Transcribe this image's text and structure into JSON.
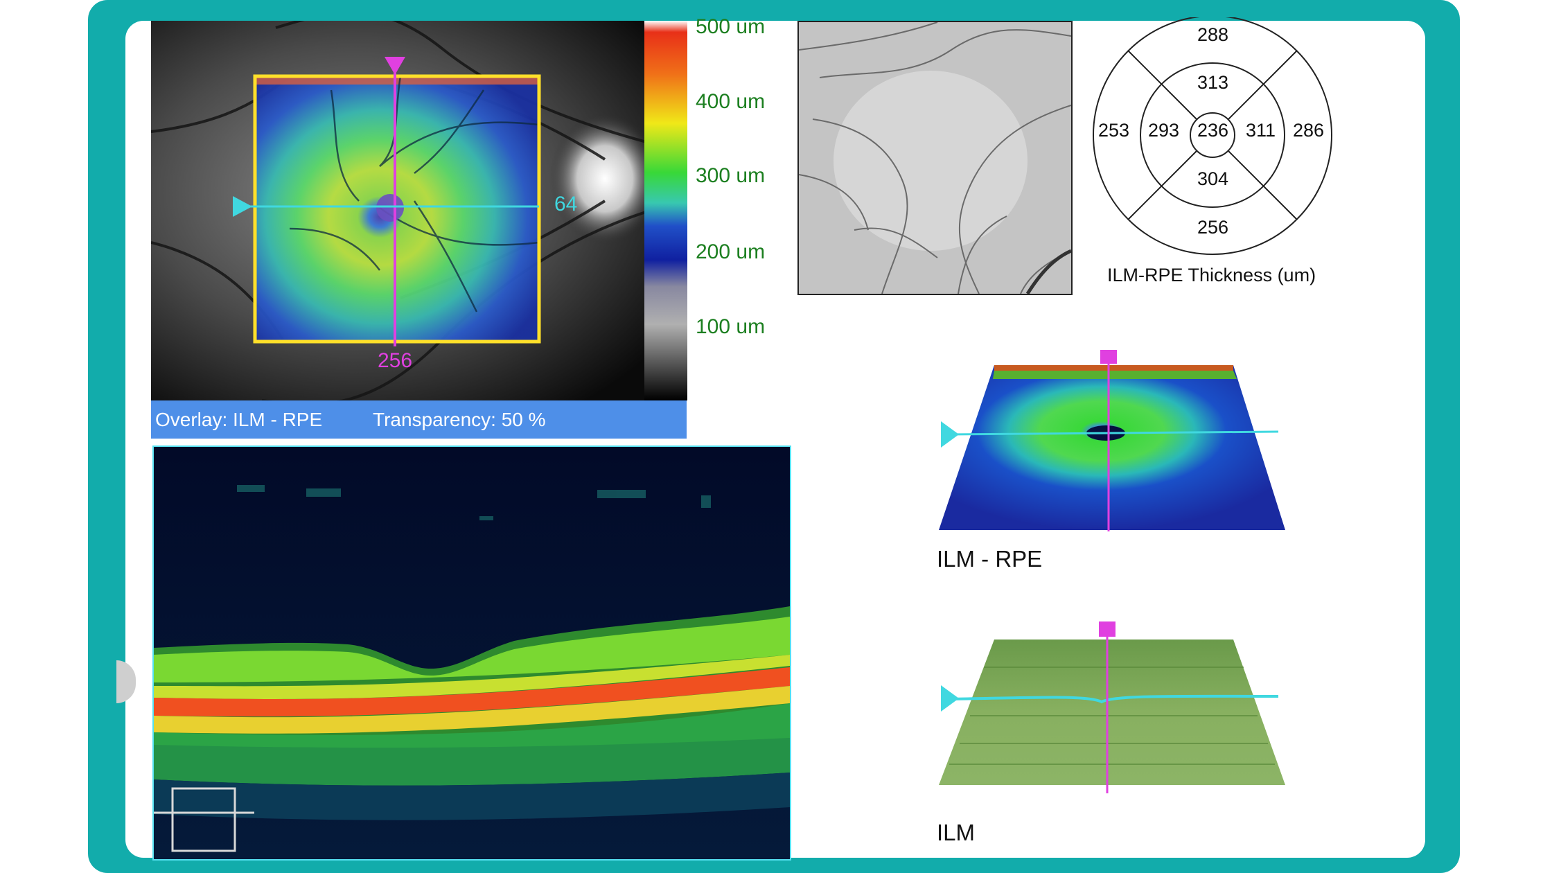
{
  "fundus": {
    "vertical_position": "256",
    "horizontal_position": "64",
    "overlay_label": "Overlay: ILM - RPE",
    "transparency_label": "Transparency: 50 %"
  },
  "color_scale": {
    "labels": [
      "500 um",
      "400 um",
      "300 um",
      "200 um",
      "100 um"
    ]
  },
  "thickness_chart": {
    "center": "236",
    "inner_top": "313",
    "inner_left": "293",
    "inner_right": "311",
    "inner_bottom": "304",
    "outer_top": "288",
    "outer_left": "253",
    "outer_right": "286",
    "outer_bottom": "256",
    "caption": "ILM-RPE Thickness (um)"
  },
  "surface_views": {
    "map_caption": "ILM - RPE",
    "ilm_caption": "ILM"
  },
  "colors": {
    "frame": "#12acab",
    "marker_vertical": "#e040e0",
    "marker_horizontal": "#40d8e0",
    "overlay_bar": "#4e8fe8",
    "scan_box": "#ffe02a"
  }
}
